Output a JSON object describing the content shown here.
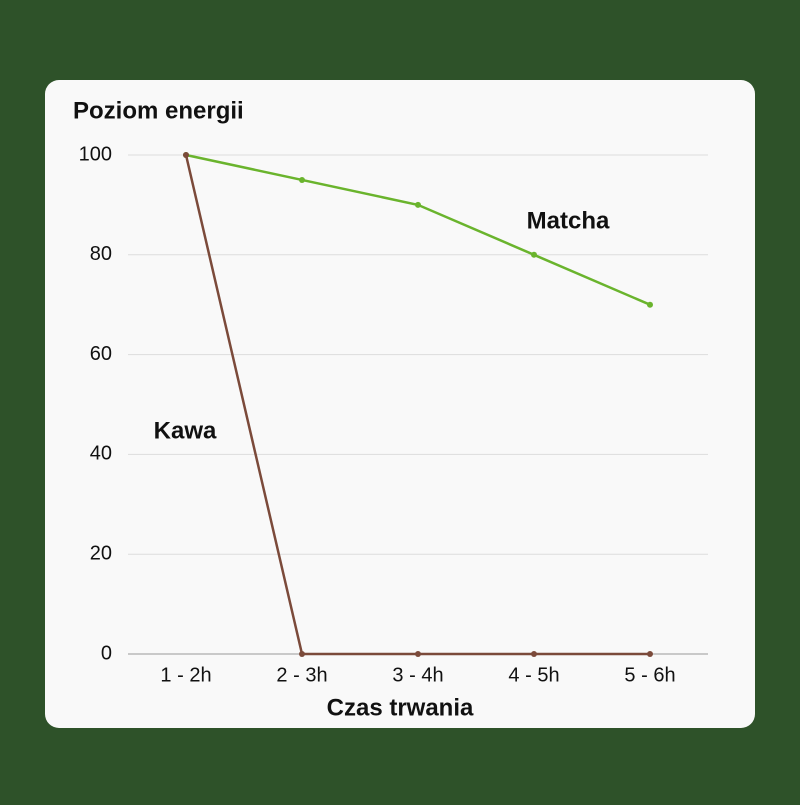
{
  "chart_data": {
    "type": "line",
    "y_label": "Poziom energii",
    "x_label": "Czas trwania",
    "categories": [
      "1 - 2h",
      "2 - 3h",
      "3 - 4h",
      "4 - 5h",
      "5 - 6h"
    ],
    "series": [
      {
        "name": "Matcha",
        "color": "#6ab42d",
        "values": [
          100,
          95,
          90,
          80,
          70
        ]
      },
      {
        "name": "Kawa",
        "color": "#7b4a3a",
        "values": [
          100,
          0,
          0,
          0,
          0
        ]
      }
    ],
    "ylim": [
      0,
      100
    ],
    "yticks": [
      0,
      20,
      40,
      60,
      80,
      100
    ],
    "grid": true
  }
}
